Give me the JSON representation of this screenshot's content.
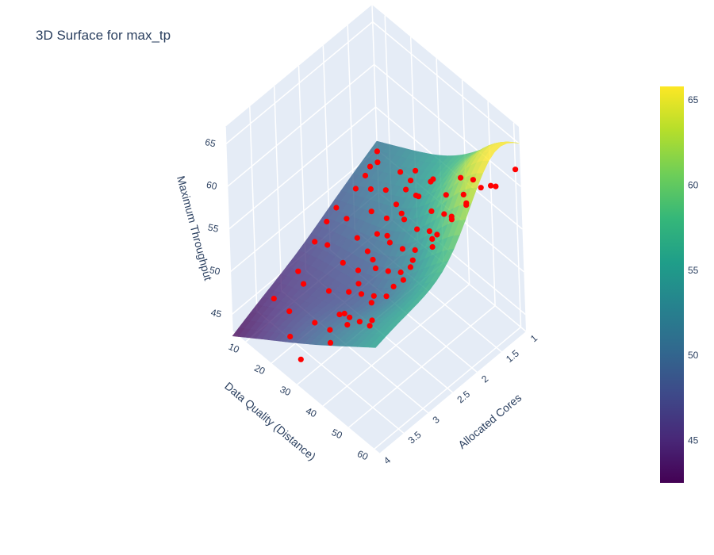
{
  "chart_data": {
    "type": "surface3d",
    "title": "3D Surface for max_tp",
    "axes": {
      "x": {
        "label": "Allocated Cores",
        "range": [
          1,
          4
        ],
        "ticks": [
          "1",
          "1.5",
          "2",
          "2.5",
          "3",
          "3.5",
          "4"
        ]
      },
      "y": {
        "label": "Data Quality (Distance)",
        "range": [
          5,
          62
        ],
        "ticks": [
          "10",
          "20",
          "30",
          "40",
          "50",
          "60"
        ]
      },
      "z": {
        "label": "Maximum Throughput",
        "range": [
          43,
          67
        ],
        "ticks": [
          "45",
          "50",
          "55",
          "60",
          "65"
        ]
      }
    },
    "surface": {
      "name": "max_tp",
      "colorscale": "Viridis",
      "cmin": 42.5,
      "cmax": 65.8,
      "corners": {
        "cores_1_quality_5": 51.0,
        "cores_1_quality_62": 61.0,
        "cores_4_quality_5": 42.5,
        "cores_4_quality_62": 55.5
      },
      "peak": {
        "cores": 1.5,
        "quality": 62,
        "value": 66.0
      }
    },
    "scatter": {
      "color": "#ff0000",
      "points": [
        [
          1.0,
          5,
          49.8
        ],
        [
          1.1,
          7,
          49.5
        ],
        [
          1.3,
          8,
          50.2
        ],
        [
          1.5,
          10,
          50.6
        ],
        [
          1.8,
          12,
          51.0
        ],
        [
          2.1,
          10,
          49.7
        ],
        [
          2.4,
          12,
          50.0
        ],
        [
          2.8,
          15,
          50.3
        ],
        [
          3.2,
          16,
          49.0
        ],
        [
          3.6,
          14,
          47.2
        ],
        [
          1.2,
          18,
          51.6
        ],
        [
          1.6,
          20,
          51.9
        ],
        [
          2.0,
          22,
          51.8
        ],
        [
          2.4,
          24,
          51.1
        ],
        [
          2.8,
          26,
          50.6
        ],
        [
          3.2,
          28,
          49.7
        ],
        [
          3.6,
          30,
          48.4
        ],
        [
          4.0,
          32,
          46.5
        ],
        [
          1.1,
          28,
          52.5
        ],
        [
          1.5,
          30,
          53.3
        ],
        [
          1.9,
          32,
          53.6
        ],
        [
          2.3,
          34,
          53.4
        ],
        [
          2.7,
          36,
          53.0
        ],
        [
          3.1,
          38,
          52.6
        ],
        [
          3.5,
          40,
          51.5
        ],
        [
          1.0,
          38,
          55.0
        ],
        [
          1.4,
          40,
          55.4
        ],
        [
          1.8,
          42,
          55.9
        ],
        [
          2.2,
          44,
          56.2
        ],
        [
          2.6,
          46,
          56.3
        ],
        [
          3.0,
          48,
          56.1
        ],
        [
          3.4,
          50,
          55.6
        ],
        [
          3.8,
          52,
          55.0
        ],
        [
          1.2,
          50,
          57.8
        ],
        [
          1.6,
          52,
          58.4
        ],
        [
          2.0,
          54,
          58.9
        ],
        [
          2.5,
          56,
          59.5
        ],
        [
          3.0,
          58,
          59.9
        ],
        [
          3.5,
          60,
          59.7
        ],
        [
          1.0,
          60,
          61.5
        ],
        [
          1.5,
          62,
          62.4
        ],
        [
          2.0,
          60,
          62.1
        ],
        [
          2.6,
          60,
          61.5
        ],
        [
          3.2,
          61,
          60.8
        ],
        [
          3.9,
          58,
          56.5
        ],
        [
          1.3,
          33,
          55.0
        ],
        [
          1.7,
          35,
          55.4
        ],
        [
          2.1,
          37,
          55.1
        ],
        [
          2.5,
          39,
          54.8
        ],
        [
          2.9,
          41,
          54.2
        ],
        [
          3.3,
          43,
          53.6
        ],
        [
          3.7,
          45,
          52.4
        ],
        [
          1.1,
          45,
          57.0
        ],
        [
          1.4,
          47,
          57.2
        ],
        [
          1.9,
          49,
          57.8
        ],
        [
          2.3,
          51,
          58.2
        ],
        [
          2.7,
          53,
          58.4
        ],
        [
          3.1,
          55,
          58.2
        ],
        [
          3.5,
          57,
          57.8
        ],
        [
          3.9,
          59,
          57.4
        ],
        [
          1.0,
          20,
          51.3
        ],
        [
          1.2,
          22,
          51.6
        ],
        [
          1.4,
          24,
          52.0
        ],
        [
          1.7,
          26,
          52.2
        ],
        [
          2.0,
          28,
          52.5
        ],
        [
          2.3,
          30,
          52.6
        ],
        [
          2.6,
          32,
          52.5
        ],
        [
          2.9,
          34,
          52.2
        ],
        [
          3.2,
          36,
          51.6
        ],
        [
          3.5,
          38,
          50.9
        ],
        [
          3.8,
          40,
          49.5
        ],
        [
          1.6,
          14,
          50.5
        ],
        [
          2.2,
          16,
          50.4
        ],
        [
          2.7,
          18,
          50.2
        ],
        [
          3.3,
          20,
          49.0
        ],
        [
          3.7,
          22,
          48.2
        ],
        [
          3.9,
          26,
          47.2
        ],
        [
          1.4,
          58,
          61.0
        ],
        [
          2.2,
          58,
          61.2
        ],
        [
          2.8,
          62,
          61.5
        ],
        [
          3.4,
          62,
          60.5
        ],
        [
          3.7,
          55,
          57.5
        ],
        [
          3.8,
          48,
          54.5
        ],
        [
          3.9,
          42,
          52.0
        ]
      ]
    },
    "colorbar": {
      "ticks": [
        "45",
        "50",
        "55",
        "60",
        "65"
      ],
      "tick_values": [
        45,
        50,
        55,
        60,
        65
      ],
      "range": [
        42.5,
        65.8
      ]
    }
  }
}
